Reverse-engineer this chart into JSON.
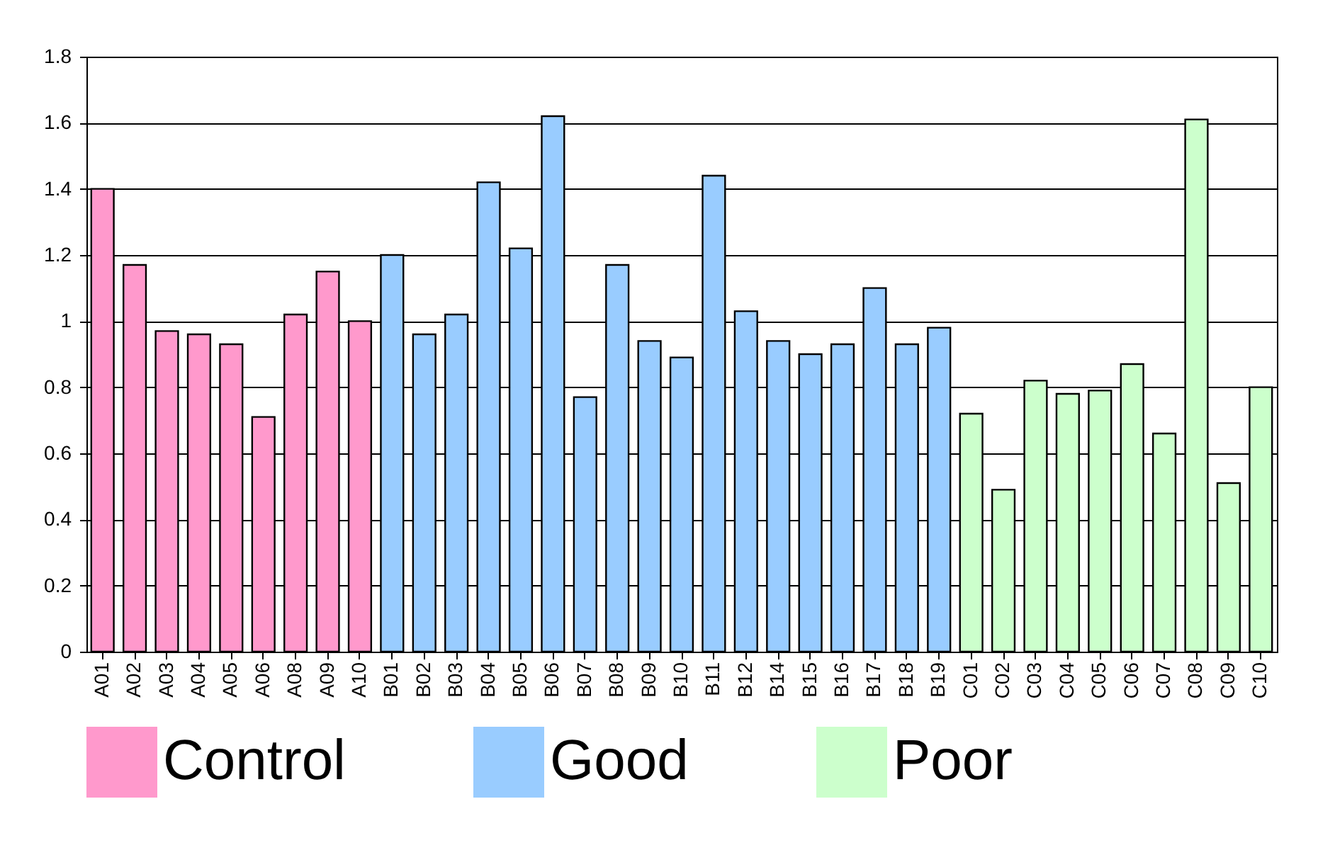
{
  "chart_data": {
    "type": "bar",
    "categories": [
      "A01",
      "A02",
      "A03",
      "A04",
      "A05",
      "A06",
      "A08",
      "A09",
      "A10",
      "B01",
      "B02",
      "B03",
      "B04",
      "B05",
      "B06",
      "B07",
      "B08",
      "B09",
      "B10",
      "B11",
      "B12",
      "B14",
      "B15",
      "B16",
      "B17",
      "B18",
      "B19",
      "C01",
      "C02",
      "C03",
      "C04",
      "C05",
      "C06",
      "C07",
      "C08",
      "C09",
      "C10"
    ],
    "series": [
      {
        "name": "Control",
        "color": "#ff99cc",
        "values": [
          1.4,
          1.17,
          0.97,
          0.96,
          0.93,
          0.71,
          1.02,
          1.15,
          1.0,
          null,
          null,
          null,
          null,
          null,
          null,
          null,
          null,
          null,
          null,
          null,
          null,
          null,
          null,
          null,
          null,
          null,
          null,
          null,
          null,
          null,
          null,
          null,
          null,
          null,
          null,
          null,
          null
        ]
      },
      {
        "name": "Good",
        "color": "#99ccff",
        "values": [
          null,
          null,
          null,
          null,
          null,
          null,
          null,
          null,
          null,
          1.2,
          0.96,
          1.02,
          1.42,
          1.22,
          1.62,
          0.77,
          1.17,
          0.94,
          0.89,
          1.44,
          1.03,
          0.94,
          0.9,
          0.93,
          1.1,
          0.93,
          0.98,
          null,
          null,
          null,
          null,
          null,
          null,
          null,
          null,
          null,
          null
        ]
      },
      {
        "name": "Poor",
        "color": "#ccffcc",
        "values": [
          null,
          null,
          null,
          null,
          null,
          null,
          null,
          null,
          null,
          null,
          null,
          null,
          null,
          null,
          null,
          null,
          null,
          null,
          null,
          null,
          null,
          null,
          null,
          null,
          null,
          null,
          null,
          0.72,
          0.49,
          0.82,
          0.78,
          0.79,
          0.87,
          0.66,
          1.61,
          0.51,
          0.8
        ]
      }
    ],
    "ylim": [
      0,
      1.8
    ],
    "yticks": [
      0,
      0.2,
      0.4,
      0.6,
      0.8,
      1,
      1.2,
      1.4,
      1.6,
      1.8
    ],
    "grid": "y",
    "legend": "bottom"
  }
}
